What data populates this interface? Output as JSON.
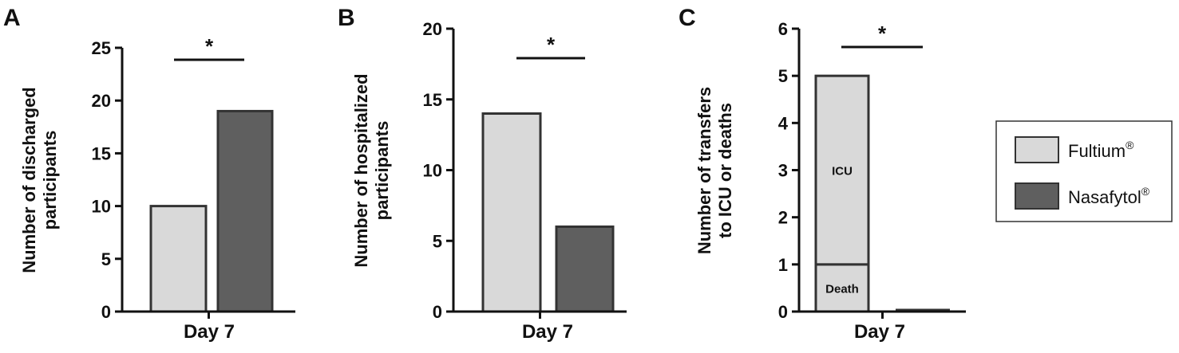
{
  "colors": {
    "fultium": "#d9d9d9",
    "nasafytol": "#5f5f5f",
    "outline": "#333333"
  },
  "legend": {
    "items": [
      {
        "label": "Fultium",
        "sup": "®",
        "color": "#d9d9d9"
      },
      {
        "label": "Nasafytol",
        "sup": "®",
        "color": "#5f5f5f"
      }
    ]
  },
  "chart_data": [
    {
      "panel": "A",
      "type": "bar",
      "categories": [
        "Day 7"
      ],
      "series": [
        {
          "name": "Fultium®",
          "values": [
            10
          ]
        },
        {
          "name": "Nasafytol®",
          "values": [
            19
          ]
        }
      ],
      "ylabel_lines": [
        "Number of discharged",
        "participants"
      ],
      "xlabel": "Day 7",
      "ylim": [
        0,
        25
      ],
      "yticks": [
        0,
        5,
        10,
        15,
        20,
        25
      ],
      "significance": "*"
    },
    {
      "panel": "B",
      "type": "bar",
      "categories": [
        "Day 7"
      ],
      "series": [
        {
          "name": "Fultium®",
          "values": [
            14
          ]
        },
        {
          "name": "Nasafytol®",
          "values": [
            6
          ]
        }
      ],
      "ylabel_lines": [
        "Number of hospitalized",
        "participants"
      ],
      "xlabel": "Day 7",
      "ylim": [
        0,
        20
      ],
      "yticks": [
        0,
        5,
        10,
        15,
        20
      ],
      "significance": "*"
    },
    {
      "panel": "C",
      "type": "bar",
      "stacked": true,
      "categories": [
        "Day 7"
      ],
      "series": [
        {
          "name": "Fultium®",
          "values": [
            5
          ],
          "segments": [
            {
              "label": "Death",
              "value": 1
            },
            {
              "label": "ICU",
              "value": 4
            }
          ]
        },
        {
          "name": "Nasafytol®",
          "values": [
            0
          ],
          "segments": []
        }
      ],
      "ylabel_lines": [
        "Number of transfers",
        "to ICU or deaths"
      ],
      "xlabel": "Day 7",
      "ylim": [
        0,
        6
      ],
      "yticks": [
        0,
        1,
        2,
        3,
        4,
        5,
        6
      ],
      "significance": "*"
    }
  ]
}
